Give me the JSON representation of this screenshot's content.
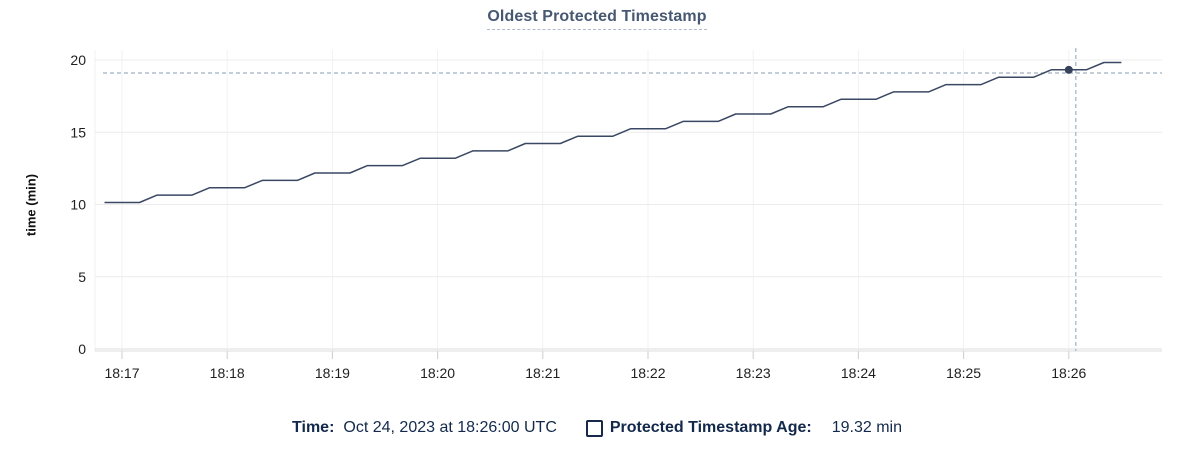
{
  "header": {
    "title": "Oldest Protected Timestamp"
  },
  "y_axis": {
    "label": "time (min)"
  },
  "legend": {
    "time_label": "Time:",
    "time_value": "Oct 24, 2023 at 18:26:00 UTC",
    "series_label": "Protected Timestamp Age:",
    "series_value": "19.32 min"
  },
  "colors": {
    "line": "#3a4864",
    "dot": "#36425c",
    "title_text": "#475872",
    "legend_text": "#13294b",
    "crosshair": "#9fb1c1",
    "grid_h": "#ececec",
    "grid_v": "#f2f2f2",
    "axis_line": "#dedede",
    "tick_mark": "#cccccc",
    "tick_text": "#1f1f1f"
  },
  "chart_data": {
    "type": "line",
    "title": "Oldest Protected Timestamp",
    "xlabel": "",
    "ylabel": "time (min)",
    "ylim": [
      0,
      20
    ],
    "yticks": [
      0,
      5,
      10,
      15,
      20
    ],
    "x_unit": "seconds after 18:00 UTC",
    "xticks": [
      {
        "s": 1020,
        "label": "18:17"
      },
      {
        "s": 1080,
        "label": "18:18"
      },
      {
        "s": 1140,
        "label": "18:19"
      },
      {
        "s": 1200,
        "label": "18:20"
      },
      {
        "s": 1260,
        "label": "18:21"
      },
      {
        "s": 1320,
        "label": "18:22"
      },
      {
        "s": 1380,
        "label": "18:23"
      },
      {
        "s": 1440,
        "label": "18:24"
      },
      {
        "s": 1500,
        "label": "18:25"
      },
      {
        "s": 1560,
        "label": "18:26"
      }
    ],
    "grid": true,
    "legend_position": "bottom",
    "series": [
      {
        "name": "Protected Timestamp Age",
        "unit": "min",
        "color": "#3a4864",
        "points": [
          [
            1010,
            10.14
          ],
          [
            1030,
            10.14
          ],
          [
            1040,
            10.65
          ],
          [
            1060,
            10.65
          ],
          [
            1070,
            11.16
          ],
          [
            1090,
            11.16
          ],
          [
            1100,
            11.67
          ],
          [
            1120,
            11.67
          ],
          [
            1130,
            12.18
          ],
          [
            1150,
            12.18
          ],
          [
            1160,
            12.69
          ],
          [
            1180,
            12.69
          ],
          [
            1190,
            13.2
          ],
          [
            1210,
            13.2
          ],
          [
            1220,
            13.71
          ],
          [
            1240,
            13.71
          ],
          [
            1250,
            14.22
          ],
          [
            1270,
            14.22
          ],
          [
            1280,
            14.73
          ],
          [
            1300,
            14.73
          ],
          [
            1310,
            15.24
          ],
          [
            1330,
            15.24
          ],
          [
            1340,
            15.75
          ],
          [
            1360,
            15.75
          ],
          [
            1370,
            16.26
          ],
          [
            1390,
            16.26
          ],
          [
            1400,
            16.77
          ],
          [
            1420,
            16.77
          ],
          [
            1430,
            17.28
          ],
          [
            1450,
            17.28
          ],
          [
            1460,
            17.79
          ],
          [
            1480,
            17.79
          ],
          [
            1490,
            18.3
          ],
          [
            1510,
            18.3
          ],
          [
            1520,
            18.81
          ],
          [
            1540,
            18.81
          ],
          [
            1550,
            19.32
          ],
          [
            1570,
            19.32
          ],
          [
            1580,
            19.83
          ],
          [
            1590,
            19.83
          ]
        ]
      }
    ],
    "highlight_point": {
      "s": 1560,
      "value": 19.32,
      "time": "18:26:00",
      "formatted": "19.32 min"
    },
    "crosshair": {
      "s": 1564,
      "value": 19.1
    }
  }
}
